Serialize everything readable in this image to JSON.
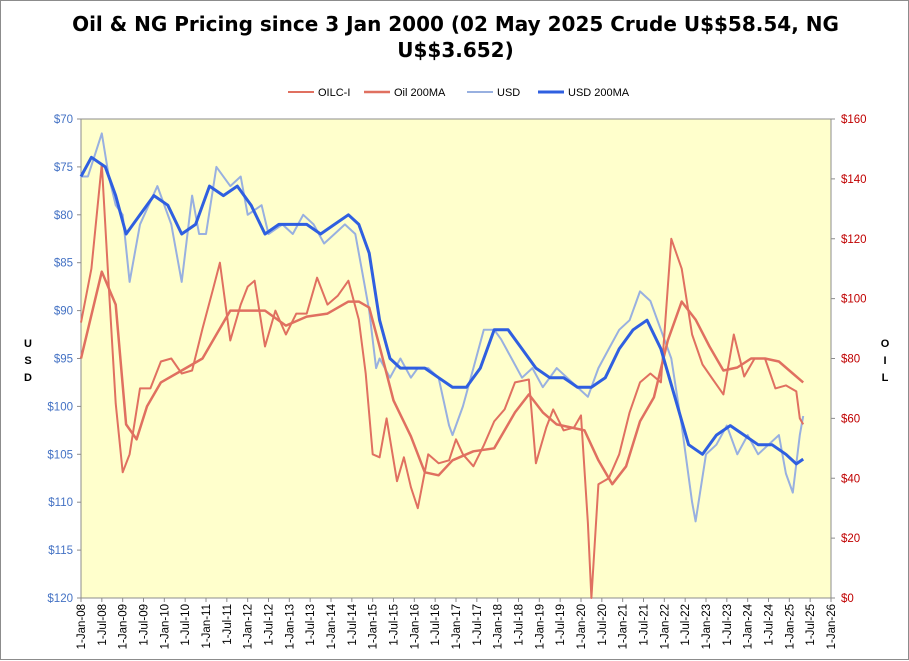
{
  "chart_data": {
    "type": "line",
    "title_line1": "Oil & NG Pricing since 3 Jan 2000  (02 May 2025 Crude U$$58.54, NG",
    "title_line2": "U$$3.652)",
    "left_axis": {
      "label": "USD",
      "reversed": true,
      "range": [
        70,
        120
      ],
      "ticks": [
        "$70",
        "$75",
        "$80",
        "$85",
        "$90",
        "$95",
        "$100",
        "$105",
        "$110",
        "$115",
        "$120"
      ],
      "color": "#4472c4"
    },
    "right_axis": {
      "label": "OIL",
      "range": [
        0,
        160
      ],
      "ticks": [
        "$0",
        "$20",
        "$40",
        "$60",
        "$80",
        "$100",
        "$120",
        "$140",
        "$160"
      ],
      "color": "#c00000"
    },
    "x_ticks": [
      "1-Jan-08",
      "1-Jul-08",
      "1-Jan-09",
      "1-Jul-09",
      "1-Jan-10",
      "1-Jul-10",
      "1-Jan-11",
      "1-Jul-11",
      "1-Jan-12",
      "1-Jul-12",
      "1-Jan-13",
      "1-Jul-13",
      "1-Jan-14",
      "1-Jul-14",
      "1-Jan-15",
      "1-Jul-15",
      "1-Jan-16",
      "1-Jul-16",
      "1-Jan-17",
      "1-Jul-17",
      "1-Jan-18",
      "1-Jul-18",
      "1-Jan-19",
      "1-Jul-19",
      "1-Jan-20",
      "1-Jul-20",
      "1-Jan-21",
      "1-Jul-21",
      "1-Jan-22",
      "1-Jul-22",
      "1-Jan-23",
      "1-Jul-23",
      "1-Jan-24",
      "1-Jul-24",
      "1-Jan-25",
      "1-Jul-25",
      "1-Jan-26"
    ],
    "x_range": [
      "2008-01-01",
      "2026-01-01"
    ],
    "plot_background": "#ffffcc",
    "legend_position": "top-center",
    "series": [
      {
        "name": "OILC-I",
        "axis": "right",
        "color": "#e07060",
        "x": [
          "2008-01",
          "2008-04",
          "2008-07",
          "2008-09",
          "2008-11",
          "2009-01",
          "2009-03",
          "2009-06",
          "2009-09",
          "2009-12",
          "2010-03",
          "2010-06",
          "2010-09",
          "2010-12",
          "2011-03",
          "2011-05",
          "2011-08",
          "2011-11",
          "2012-01",
          "2012-03",
          "2012-06",
          "2012-09",
          "2012-12",
          "2013-03",
          "2013-06",
          "2013-09",
          "2013-12",
          "2014-03",
          "2014-06",
          "2014-09",
          "2014-11",
          "2015-01",
          "2015-03",
          "2015-05",
          "2015-08",
          "2015-10",
          "2015-12",
          "2016-02",
          "2016-05",
          "2016-08",
          "2016-11",
          "2017-01",
          "2017-03",
          "2017-06",
          "2017-09",
          "2017-12",
          "2018-03",
          "2018-06",
          "2018-10",
          "2018-12",
          "2019-03",
          "2019-05",
          "2019-08",
          "2019-11",
          "2020-01",
          "2020-03",
          "2020-04",
          "2020-06",
          "2020-09",
          "2020-12",
          "2021-03",
          "2021-06",
          "2021-09",
          "2021-12",
          "2022-03",
          "2022-06",
          "2022-09",
          "2022-12",
          "2023-03",
          "2023-06",
          "2023-09",
          "2023-12",
          "2024-03",
          "2024-06",
          "2024-09",
          "2024-12",
          "2025-03",
          "2025-04",
          "2025-05"
        ],
        "y": [
          92,
          110,
          145,
          104,
          65,
          42,
          48,
          70,
          70,
          79,
          80,
          75,
          76,
          90,
          103,
          112,
          86,
          98,
          104,
          106,
          84,
          96,
          88,
          95,
          95,
          107,
          98,
          101,
          106,
          93,
          75,
          48,
          47,
          60,
          39,
          47,
          37,
          30,
          48,
          45,
          46,
          53,
          48,
          44,
          51,
          59,
          63,
          72,
          73,
          45,
          57,
          63,
          56,
          57,
          61,
          25,
          0,
          38,
          40,
          48,
          62,
          72,
          75,
          72,
          120,
          110,
          88,
          78,
          73,
          68,
          88,
          74,
          80,
          80,
          70,
          71,
          69,
          60,
          58
        ]
      },
      {
        "name": "Oil 200MA",
        "axis": "right",
        "color": "#e07060",
        "x": [
          "2008-01",
          "2008-07",
          "2008-11",
          "2009-02",
          "2009-05",
          "2009-08",
          "2009-12",
          "2010-06",
          "2010-12",
          "2011-04",
          "2011-08",
          "2011-12",
          "2012-06",
          "2012-12",
          "2013-06",
          "2013-12",
          "2014-06",
          "2014-09",
          "2014-12",
          "2015-03",
          "2015-07",
          "2015-12",
          "2016-04",
          "2016-08",
          "2016-12",
          "2017-06",
          "2017-12",
          "2018-06",
          "2018-10",
          "2019-02",
          "2019-06",
          "2019-10",
          "2020-02",
          "2020-06",
          "2020-10",
          "2021-02",
          "2021-06",
          "2021-10",
          "2022-02",
          "2022-06",
          "2022-10",
          "2023-02",
          "2023-06",
          "2023-10",
          "2024-02",
          "2024-06",
          "2024-10",
          "2025-02",
          "2025-05"
        ],
        "y": [
          80,
          109,
          98,
          58,
          53,
          64,
          72,
          76,
          80,
          88,
          96,
          96,
          96,
          91,
          94,
          95,
          99,
          99,
          97,
          84,
          66,
          54,
          42,
          41,
          46,
          49,
          50,
          62,
          68,
          62,
          58,
          57,
          56,
          46,
          38,
          44,
          59,
          67,
          86,
          99,
          93,
          84,
          76,
          77,
          80,
          80,
          79,
          75,
          72
        ]
      },
      {
        "name": "USD",
        "axis": "left",
        "color": "#98b0e0",
        "x": [
          "2008-01",
          "2008-03",
          "2008-07",
          "2008-09",
          "2008-11",
          "2009-01",
          "2009-03",
          "2009-06",
          "2009-11",
          "2010-03",
          "2010-06",
          "2010-09",
          "2010-11",
          "2011-01",
          "2011-04",
          "2011-08",
          "2011-11",
          "2012-01",
          "2012-05",
          "2012-07",
          "2012-11",
          "2013-02",
          "2013-05",
          "2013-08",
          "2013-11",
          "2014-02",
          "2014-05",
          "2014-08",
          "2014-10",
          "2014-12",
          "2015-02",
          "2015-03",
          "2015-06",
          "2015-09",
          "2015-12",
          "2016-02",
          "2016-05",
          "2016-08",
          "2016-11",
          "2016-12",
          "2017-03",
          "2017-06",
          "2017-09",
          "2017-12",
          "2018-02",
          "2018-05",
          "2018-08",
          "2018-11",
          "2019-02",
          "2019-06",
          "2019-09",
          "2019-12",
          "2020-03",
          "2020-06",
          "2020-09",
          "2020-12",
          "2021-03",
          "2021-06",
          "2021-09",
          "2021-12",
          "2022-03",
          "2022-06",
          "2022-09",
          "2022-10",
          "2023-01",
          "2023-04",
          "2023-07",
          "2023-10",
          "2024-01",
          "2024-04",
          "2024-07",
          "2024-10",
          "2024-12",
          "2025-02",
          "2025-04",
          "2025-05"
        ],
        "y": [
          76,
          76,
          71.5,
          76,
          79,
          80,
          87,
          81,
          77,
          81,
          87,
          78,
          82,
          82,
          75,
          77,
          76,
          80,
          79,
          82,
          81,
          82,
          80,
          81,
          83,
          82,
          81,
          82,
          86,
          90,
          96,
          95,
          97,
          95,
          97,
          96,
          96,
          97,
          102,
          103,
          100,
          96,
          92,
          92,
          93,
          95,
          97,
          96,
          98,
          96,
          97,
          98,
          99,
          96,
          94,
          92,
          91,
          88,
          89,
          92,
          95,
          102,
          110,
          112,
          105,
          104,
          102,
          105,
          103,
          105,
          104,
          103,
          107,
          109,
          103,
          101
        ]
      },
      {
        "name": "USD 200MA",
        "axis": "left",
        "color": "#2f5fe0",
        "x": [
          "2008-01",
          "2008-04",
          "2008-08",
          "2008-11",
          "2009-02",
          "2009-06",
          "2009-10",
          "2010-02",
          "2010-06",
          "2010-10",
          "2011-02",
          "2011-06",
          "2011-10",
          "2012-02",
          "2012-06",
          "2012-10",
          "2013-02",
          "2013-06",
          "2013-10",
          "2014-02",
          "2014-06",
          "2014-09",
          "2014-12",
          "2015-03",
          "2015-06",
          "2015-09",
          "2015-12",
          "2016-04",
          "2016-08",
          "2016-12",
          "2017-04",
          "2017-08",
          "2017-12",
          "2018-04",
          "2018-08",
          "2018-12",
          "2019-04",
          "2019-08",
          "2019-12",
          "2020-04",
          "2020-08",
          "2020-12",
          "2021-04",
          "2021-08",
          "2021-12",
          "2022-04",
          "2022-08",
          "2022-12",
          "2023-04",
          "2023-08",
          "2023-12",
          "2024-04",
          "2024-08",
          "2024-12",
          "2025-03",
          "2025-05"
        ],
        "y": [
          76,
          74,
          75,
          78,
          82,
          80,
          78,
          79,
          82,
          81,
          77,
          78,
          77,
          79,
          82,
          81,
          81,
          81,
          82,
          81,
          80,
          81,
          84,
          91,
          95,
          96,
          96,
          96,
          97,
          98,
          98,
          96,
          92,
          92,
          94,
          96,
          97,
          97,
          98,
          98,
          97,
          94,
          92,
          91,
          94,
          99,
          104,
          105,
          103,
          102,
          103,
          104,
          104,
          105,
          106,
          105.5
        ]
      }
    ]
  }
}
